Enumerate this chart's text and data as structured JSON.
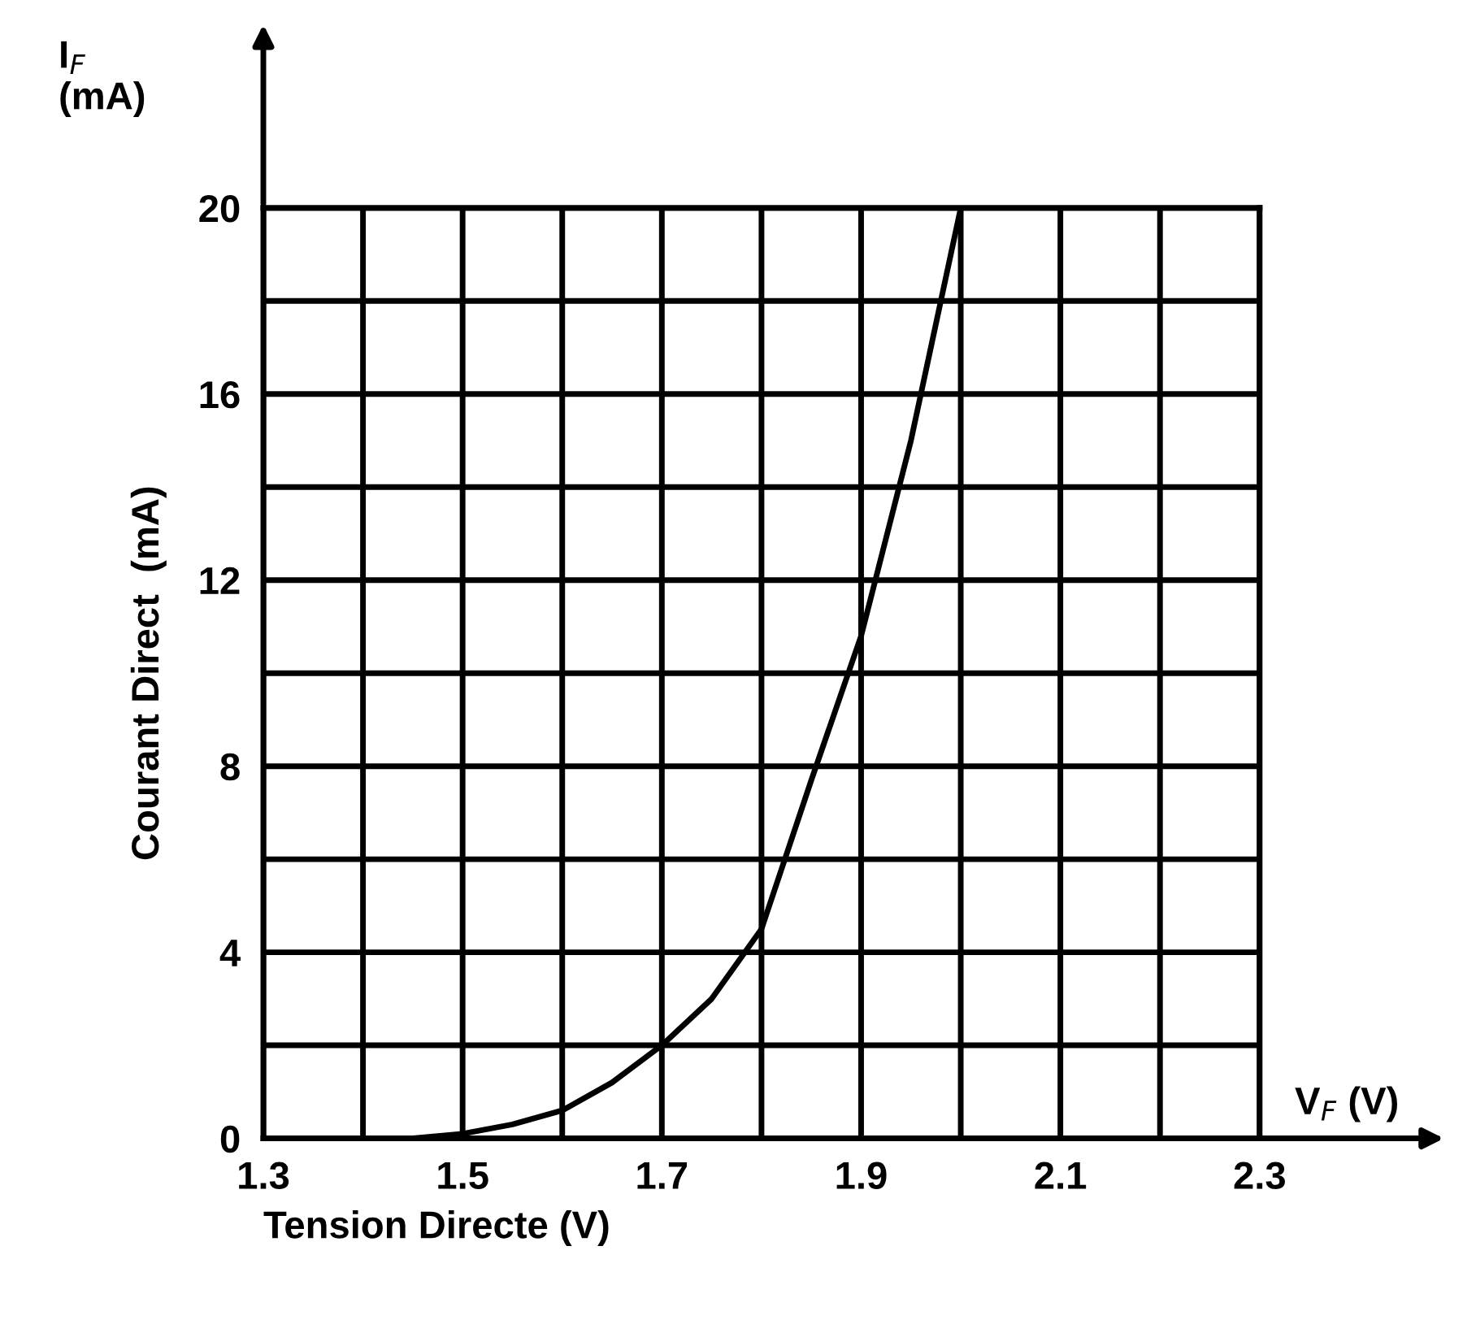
{
  "chart_data": {
    "type": "line",
    "xlabel": "Tension Directe (V)",
    "ylabel": "Courant Direct  (mA)",
    "annotations": [
      "I$_{F}$\n(mA)",
      "V$_{F}$ (V)"
    ],
    "x": [
      1.45,
      1.5,
      1.55,
      1.6,
      1.65,
      1.7,
      1.75,
      1.8,
      1.85,
      1.9,
      1.95,
      2.0
    ],
    "series": [
      {
        "color": "#000000",
        "values": [
          0,
          0.1,
          0.3,
          0.6,
          1.2,
          2,
          3,
          4.5,
          7.7,
          10.8,
          15,
          20
        ]
      }
    ],
    "xlim": [
      1.3,
      2.3
    ],
    "xticks": [
      1.3,
      {
        "value": 1.4,
        "label": null
      },
      1.5,
      {
        "value": 1.6,
        "label": null
      },
      1.7,
      {
        "value": 1.8,
        "label": null
      },
      1.9,
      {
        "value": 2.0,
        "label": null
      },
      2.1,
      {
        "value": 2.2,
        "label": null
      },
      2.3
    ],
    "ylim": [
      0,
      20
    ],
    "yticks": [
      0,
      {
        "value": 2,
        "label": null
      },
      4,
      {
        "value": 6,
        "label": null
      },
      8,
      {
        "value": 10,
        "label": null
      },
      12,
      {
        "value": 14,
        "label": null
      },
      16,
      {
        "value": 18,
        "label": null
      },
      20
    ],
    "grid": true,
    "marker": "none",
    "line_style": "solid"
  }
}
